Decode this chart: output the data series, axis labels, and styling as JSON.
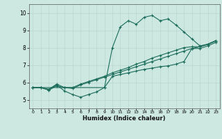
{
  "xlabel": "Humidex (Indice chaleur)",
  "bg_color": "#cce8e0",
  "grid_color": "#b8d8d0",
  "line_color": "#1a6b5a",
  "xlim": [
    -0.5,
    23.5
  ],
  "ylim": [
    4.5,
    10.5
  ],
  "yticks": [
    5,
    6,
    7,
    8,
    9,
    10
  ],
  "xticks": [
    0,
    1,
    2,
    3,
    4,
    5,
    6,
    7,
    8,
    9,
    10,
    11,
    12,
    13,
    14,
    15,
    16,
    17,
    18,
    19,
    20,
    21,
    22,
    23
  ],
  "series": [
    {
      "x": [
        0,
        1,
        2,
        3,
        4,
        5,
        6,
        7,
        8,
        9,
        10,
        11,
        12,
        13,
        14,
        15,
        16,
        17,
        18,
        19,
        20,
        21,
        22,
        23
      ],
      "y": [
        5.7,
        5.7,
        5.6,
        5.85,
        5.5,
        5.3,
        5.15,
        5.3,
        5.45,
        5.7,
        8.0,
        9.2,
        9.55,
        9.35,
        9.75,
        9.85,
        9.55,
        9.65,
        9.3,
        8.9,
        8.5,
        8.1,
        8.2,
        8.4
      ]
    },
    {
      "x": [
        0,
        1,
        2,
        3,
        4,
        5,
        6,
        7,
        8,
        9,
        10,
        11,
        12,
        13,
        14,
        15,
        16,
        17,
        18,
        19,
        20,
        21,
        22,
        23
      ],
      "y": [
        5.7,
        5.7,
        5.6,
        5.9,
        5.7,
        5.7,
        5.9,
        6.05,
        6.2,
        6.35,
        6.55,
        6.7,
        6.85,
        7.05,
        7.2,
        7.4,
        7.55,
        7.7,
        7.85,
        8.0,
        8.05,
        8.05,
        8.2,
        8.4
      ]
    },
    {
      "x": [
        0,
        1,
        2,
        3,
        4,
        5,
        6,
        7,
        8,
        9,
        10,
        11,
        12,
        13,
        14,
        15,
        16,
        17,
        18,
        19,
        20,
        21,
        22,
        23
      ],
      "y": [
        5.7,
        5.7,
        5.55,
        5.8,
        5.7,
        5.65,
        5.85,
        6.0,
        6.15,
        6.3,
        6.45,
        6.6,
        6.75,
        6.9,
        7.05,
        7.2,
        7.35,
        7.5,
        7.65,
        7.8,
        7.95,
        7.95,
        8.1,
        8.3
      ]
    },
    {
      "x": [
        0,
        9,
        10,
        11,
        12,
        13,
        14,
        15,
        16,
        17,
        18,
        19,
        20,
        21,
        22,
        23
      ],
      "y": [
        5.7,
        5.7,
        6.35,
        6.45,
        6.55,
        6.65,
        6.75,
        6.82,
        6.9,
        6.95,
        7.05,
        7.2,
        7.95,
        8.05,
        8.18,
        8.38
      ]
    }
  ]
}
